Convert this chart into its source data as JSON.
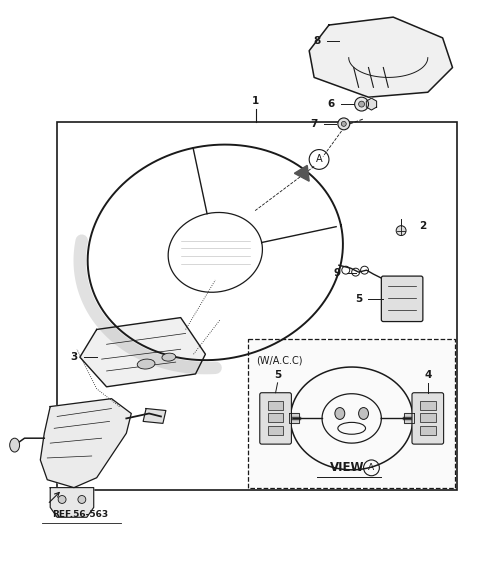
{
  "bg_color": "#ffffff",
  "line_color": "#1a1a1a",
  "fig_width": 4.8,
  "fig_height": 5.68,
  "dpi": 100,
  "ref_text": "REF.56-563",
  "wacc_text": "(W/A.C.C)",
  "view_text": "VIEW",
  "circle_A_label": "A"
}
